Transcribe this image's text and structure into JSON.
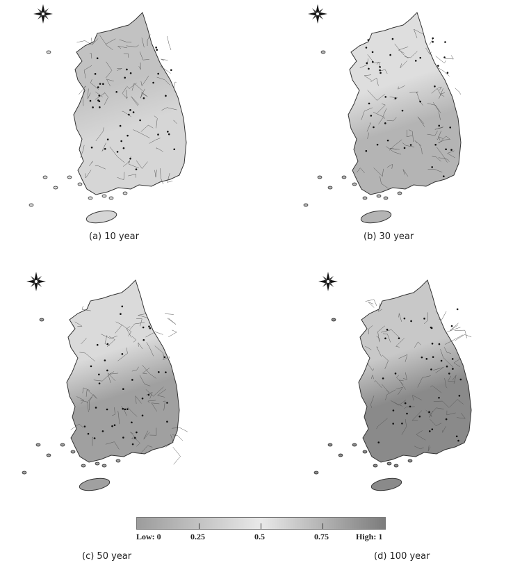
{
  "panels": [
    {
      "caption": "(a) 10 year",
      "north": "#c2c2c2",
      "south": "#d6d6d6"
    },
    {
      "caption": "(b) 30 year",
      "north": "#dedede",
      "south": "#b4b4b4"
    },
    {
      "caption": "(c) 50 year",
      "north": "#dadada",
      "south": "#a0a0a0"
    },
    {
      "caption": "(d) 100 year",
      "north": "#c8c8c8",
      "south": "#8a8a8a"
    }
  ],
  "legend": {
    "ticks": [
      "Low: 0",
      "0.25",
      "0.5",
      "0.75",
      "High: 1"
    ],
    "colors": {
      "low": "#9c9c9c",
      "mid": "#e9e9e9",
      "high": "#7c7c7c"
    }
  },
  "compass": {
    "icon": "compass-rose-icon"
  }
}
